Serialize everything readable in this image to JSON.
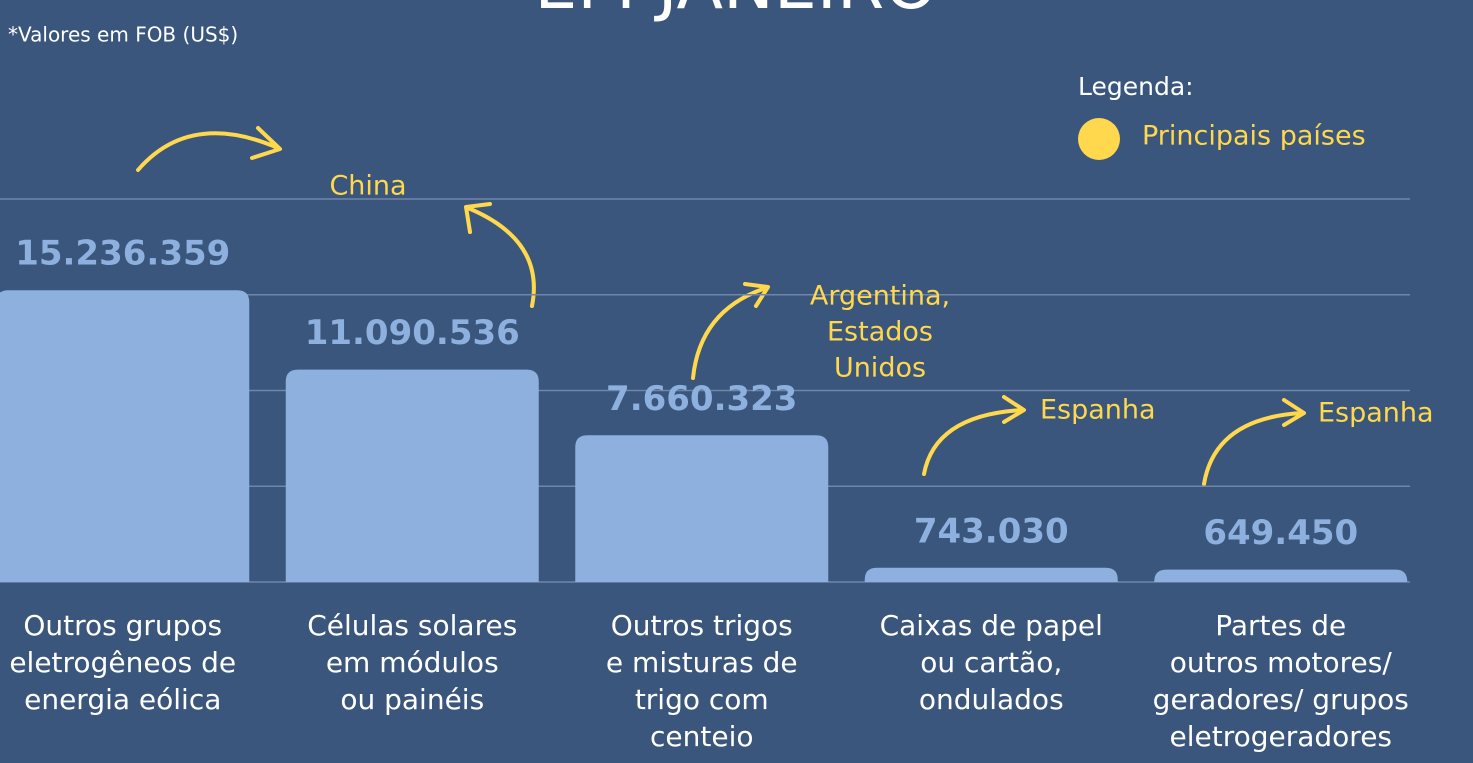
{
  "chart_data": {
    "type": "bar",
    "title": "EM JANEIRO",
    "note": "*Valores em FOB (US$)",
    "legend_title": "Legenda:",
    "legend_entry": "Principais países",
    "legend_color": "#ffd84d",
    "categories": [
      [
        "Outros grupos",
        "eletrogêneos de",
        "energia eólica"
      ],
      [
        "Células solares",
        "em módulos",
        "ou painéis"
      ],
      [
        "Outros trigos",
        "e misturas de",
        "trigo com",
        "centeio"
      ],
      [
        "Caixas de papel",
        "ou cartão,",
        "ondulados"
      ],
      [
        "Partes de",
        "outros motores/",
        "geradores/ grupos",
        "eletrogeradores"
      ]
    ],
    "values": [
      15236359,
      11090536,
      7660323,
      743030,
      649450
    ],
    "value_labels": [
      "15.236.359",
      "11.090.536",
      "7.660.323",
      "743.030",
      "649.450"
    ],
    "annotations": [
      [
        "China"
      ],
      [
        "Argentina,",
        "Estados",
        "Unidos"
      ],
      [
        "Espanha"
      ],
      [
        "Espanha"
      ]
    ],
    "color": "#8eb0df",
    "ylim": [
      0,
      20000000
    ],
    "yticks": [
      0,
      5000000,
      10000000,
      15000000,
      20000000
    ],
    "grid": true
  }
}
